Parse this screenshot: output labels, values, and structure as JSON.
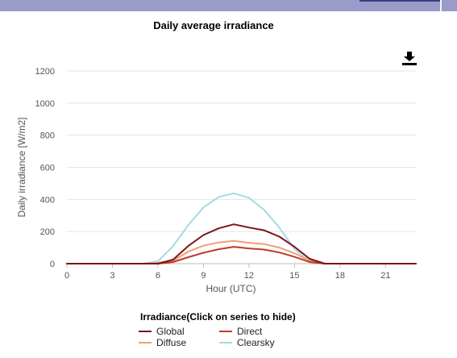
{
  "chart_data": {
    "type": "line",
    "title": "Daily average irradiance",
    "xlabel": "Hour (UTC)",
    "ylabel": "Daily irradiance [W/m2]",
    "xlim": [
      0,
      23
    ],
    "ylim": [
      0,
      1200
    ],
    "x_ticks": [
      0,
      3,
      6,
      9,
      12,
      15,
      18,
      21
    ],
    "y_ticks": [
      0,
      200,
      400,
      600,
      800,
      1000,
      1200
    ],
    "grid": true,
    "legend_title": "Irradiance(Click on series to hide)",
    "legend_position": "bottom",
    "x": [
      0,
      1,
      2,
      3,
      4,
      5,
      6,
      7,
      8,
      9,
      10,
      11,
      12,
      13,
      14,
      15,
      16,
      17,
      18,
      19,
      20,
      21,
      22,
      23
    ],
    "series": [
      {
        "name": "Global",
        "color": "#7b1416",
        "values": [
          0,
          0,
          0,
          0,
          0,
          0,
          0,
          25,
          110,
          178,
          220,
          245,
          225,
          208,
          168,
          105,
          30,
          0,
          0,
          0,
          0,
          0,
          0,
          0
        ]
      },
      {
        "name": "Direct",
        "color": "#c0392b",
        "values": [
          0,
          0,
          0,
          0,
          0,
          0,
          0,
          10,
          40,
          68,
          90,
          105,
          95,
          88,
          70,
          42,
          10,
          0,
          0,
          0,
          0,
          0,
          0,
          0
        ]
      },
      {
        "name": "Diffuse",
        "color": "#f0a070",
        "values": [
          0,
          0,
          0,
          0,
          0,
          0,
          5,
          18,
          75,
          112,
          132,
          142,
          130,
          122,
          100,
          65,
          18,
          0,
          0,
          0,
          0,
          0,
          0,
          0
        ]
      },
      {
        "name": "Clearsky",
        "color": "#a8d8e6",
        "values": [
          0,
          0,
          0,
          0,
          0,
          0,
          15,
          110,
          240,
          350,
          415,
          438,
          410,
          335,
          225,
          90,
          15,
          0,
          0,
          0,
          0,
          0,
          0,
          0
        ]
      }
    ]
  },
  "download_icon": "download-icon"
}
